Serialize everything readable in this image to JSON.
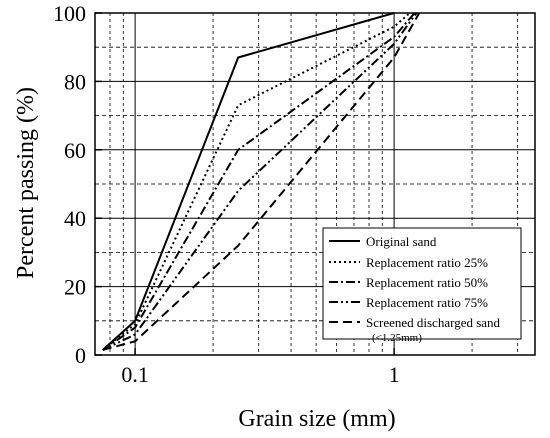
{
  "chart_data": {
    "type": "line",
    "xlabel": "Grain size (mm)",
    "ylabel": "Percent passing (%)",
    "x_scale": "log",
    "xlim": [
      0.07,
      3.5
    ],
    "ylim": [
      0,
      100
    ],
    "x_ticks": [
      {
        "value": 0.1,
        "label": "0.1"
      },
      {
        "value": 1,
        "label": "1"
      }
    ],
    "y_ticks": [
      {
        "value": 0,
        "label": "0"
      },
      {
        "value": 20,
        "label": "20"
      },
      {
        "value": 40,
        "label": "40"
      },
      {
        "value": 60,
        "label": "60"
      },
      {
        "value": 80,
        "label": "80"
      },
      {
        "value": 100,
        "label": "100"
      }
    ],
    "grid": true,
    "legend_position": "bottom-right",
    "series": [
      {
        "name": "Original sand",
        "dash": "solid",
        "x": [
          0.075,
          0.1,
          0.25,
          1.0
        ],
        "y": [
          1.5,
          10,
          87,
          100
        ]
      },
      {
        "name": "Replacement ratio 25%",
        "dash": "dot",
        "x": [
          0.075,
          0.1,
          0.25,
          1.0,
          1.15
        ],
        "y": [
          1.5,
          9,
          73,
          96,
          100
        ]
      },
      {
        "name": "Replacement ratio 50%",
        "dash": "dashdot",
        "x": [
          0.075,
          0.1,
          0.25,
          1.0,
          1.2
        ],
        "y": [
          1.5,
          8,
          60,
          93,
          100
        ]
      },
      {
        "name": "Replacement ratio 75%",
        "dash": "dashdotdot",
        "x": [
          0.075,
          0.1,
          0.25,
          1.0,
          1.22
        ],
        "y": [
          1.5,
          6,
          48,
          91,
          100
        ]
      },
      {
        "name": "Screened discharged sand",
        "name_note": "(<1.25mm)",
        "dash": "dash",
        "x": [
          0.075,
          0.1,
          0.25,
          1.0,
          1.25
        ],
        "y": [
          1.5,
          4,
          32,
          87,
          100
        ]
      }
    ]
  }
}
